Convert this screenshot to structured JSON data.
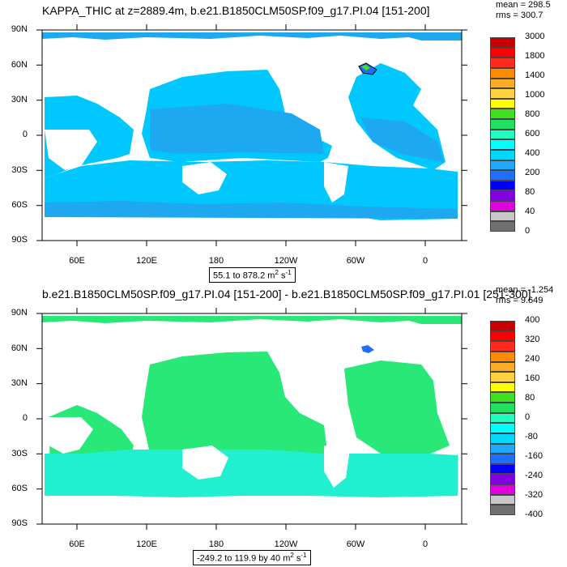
{
  "top": {
    "title": "KAPPA_THIC at z=2889.4m, b.e21.B1850CLM50SP.f09_g17.PI.04 [151-200]",
    "mean": "mean = 298.5",
    "rms": "rms = 300.7",
    "range_prefix": "55.1 to 878.2 m",
    "range_exp1": "2",
    "range_unit2": " s",
    "range_exp2": "-1",
    "colorbar_labels": [
      "3000",
      "1800",
      "1400",
      "1000",
      "800",
      "600",
      "400",
      "200",
      "80",
      "40",
      "0"
    ],
    "colorbar_colors": [
      "#c80000",
      "#ff0000",
      "#ff2a1e",
      "#ff8c00",
      "#ffaa28",
      "#ffd040",
      "#ffff00",
      "#40e020",
      "#20e060",
      "#20ffc0",
      "#00ffff",
      "#00d8ff",
      "#20a8ff",
      "#1e6eff",
      "#0000ff",
      "#8000e0",
      "#e000e0",
      "#c8c8c8",
      "#707070"
    ]
  },
  "bottom": {
    "title": "b.e21.B1850CLM50SP.f09_g17.PI.04 [151-200] - b.e21.B1850CLM50SP.f09_g17.PI.01 [251-300]",
    "mean": "mean = -1.254",
    "rms": "rms = 9.649",
    "range_prefix": "-249.2 to 119.9 by 40 m",
    "range_exp1": "2",
    "range_unit2": " s",
    "range_exp2": "-1",
    "colorbar_labels": [
      "400",
      "320",
      "240",
      "160",
      "80",
      "0",
      "-80",
      "-160",
      "-240",
      "-320",
      "-400"
    ],
    "colorbar_colors": [
      "#c80000",
      "#ff0000",
      "#ff2a1e",
      "#ff8c00",
      "#ffaa28",
      "#ffd040",
      "#ffff00",
      "#40e020",
      "#20e060",
      "#20ffc0",
      "#00ffff",
      "#00d8ff",
      "#20a8ff",
      "#1e6eff",
      "#0000ff",
      "#8000e0",
      "#e000e0",
      "#c8c8c8",
      "#707070"
    ]
  },
  "lat_labels": [
    "90N",
    "60N",
    "30N",
    "0",
    "30S",
    "60S",
    "90S"
  ],
  "lon_labels": [
    "60E",
    "120E",
    "180",
    "120W",
    "60W",
    "0"
  ],
  "colors": {
    "ocean_top_main": "#00c8ff",
    "ocean_top_deep": "#1ea8f0",
    "ocean_bottom_main": "#28e878",
    "ocean_bottom_south": "#20f0d0"
  }
}
